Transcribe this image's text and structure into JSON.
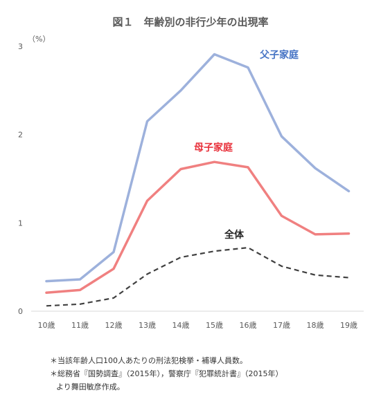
{
  "chart_data": {
    "type": "line",
    "title": "図１　年齢別の非行少年の出現率",
    "y_unit_label": "（%）",
    "categories": [
      "10歳",
      "11歳",
      "12歳",
      "13歳",
      "14歳",
      "15歳",
      "16歳",
      "17歳",
      "18歳",
      "19歳"
    ],
    "ylim": [
      0,
      3
    ],
    "yticks": [
      "0",
      "1",
      "2",
      "3"
    ],
    "grid": false,
    "legend": "inline",
    "series": [
      {
        "name": "父子家庭",
        "color": "#9db1dc",
        "label_color": "#4472c4",
        "style": "solid",
        "values": [
          0.34,
          0.36,
          0.67,
          2.15,
          2.5,
          2.91,
          2.76,
          1.98,
          1.62,
          1.36
        ]
      },
      {
        "name": "母子家庭",
        "color": "#f08080",
        "label_color": "#e8303a",
        "style": "solid",
        "values": [
          0.21,
          0.24,
          0.48,
          1.25,
          1.61,
          1.69,
          1.63,
          1.08,
          0.87,
          0.88
        ]
      },
      {
        "name": "全体",
        "color": "#404040",
        "label_color": "#262626",
        "style": "dashed",
        "values": [
          0.06,
          0.08,
          0.15,
          0.42,
          0.61,
          0.68,
          0.72,
          0.51,
          0.41,
          0.38
        ]
      }
    ]
  },
  "notes": {
    "line1": "＊当該年齢人口100人あたりの刑法犯検挙・補導人員数。",
    "line2": "＊総務省『国勢調査』（2015年），警察庁『犯罪統計書』（2015年）",
    "line3": "より舞田敏彦作成。"
  }
}
